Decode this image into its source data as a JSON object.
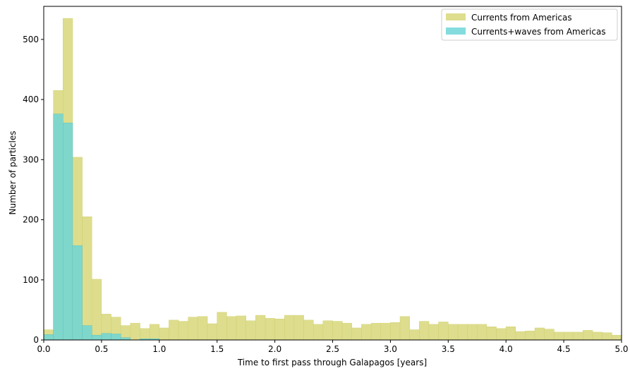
{
  "chart_data": {
    "type": "bar",
    "subtype": "histogram-overlay",
    "xlabel": "Time to first pass through Galapagos [years]",
    "ylabel": "Number of particles",
    "xlim": [
      0,
      5
    ],
    "ylim": [
      0,
      555
    ],
    "bin_width": 0.0833,
    "xticks": [
      "0.0",
      "0.5",
      "1.0",
      "1.5",
      "2.0",
      "2.5",
      "3.0",
      "3.5",
      "4.0",
      "4.5",
      "5.0"
    ],
    "xtick_values": [
      0,
      0.5,
      1,
      1.5,
      2,
      2.5,
      3,
      3.5,
      4,
      4.5,
      5
    ],
    "yticks": [
      "0",
      "100",
      "200",
      "300",
      "400",
      "500"
    ],
    "ytick_values": [
      0,
      100,
      200,
      300,
      400,
      500
    ],
    "legend_position": "top-right",
    "grid": false,
    "series": [
      {
        "name": "Currents from Americas",
        "color": "#d8d87a",
        "edge_color": "#c9c95a",
        "values": [
          17,
          415,
          535,
          304,
          205,
          101,
          43,
          38,
          24,
          28,
          19,
          26,
          20,
          33,
          31,
          38,
          39,
          27,
          46,
          39,
          40,
          32,
          41,
          36,
          35,
          41,
          41,
          33,
          26,
          32,
          31,
          28,
          20,
          26,
          28,
          28,
          29,
          39,
          17,
          31,
          26,
          30,
          26,
          26,
          26,
          26,
          22,
          19,
          22,
          14,
          15,
          20,
          18,
          13,
          13,
          13,
          16,
          13,
          12,
          8
        ]
      },
      {
        "name": "Currents+waves from Americas",
        "color": "#6fd6d8",
        "edge_color": "#4fbfc2",
        "values": [
          9,
          376,
          361,
          157,
          24,
          8,
          11,
          10,
          4,
          0,
          2,
          2,
          0,
          0,
          0,
          0,
          0,
          0,
          0,
          0,
          0,
          0,
          0,
          0,
          0,
          0,
          0,
          0,
          0,
          0,
          0,
          0,
          0,
          0,
          0,
          0,
          0,
          0,
          0,
          0,
          0,
          0,
          0,
          0,
          0,
          0,
          0,
          0,
          0,
          0,
          0,
          0,
          0,
          0,
          0,
          0,
          0,
          0,
          0,
          0
        ]
      }
    ]
  }
}
